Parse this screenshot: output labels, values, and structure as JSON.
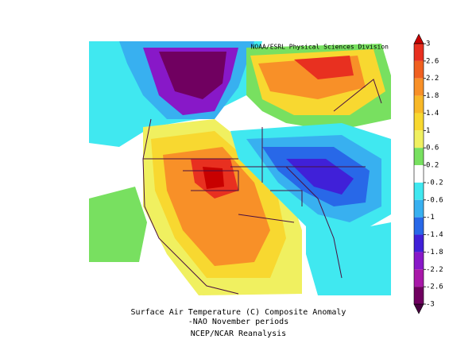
{
  "source": "NOAA/ESRL Physical Sciences Division",
  "caption": {
    "title": "Surface Air Temperature (C) Composite Anomaly",
    "subtitle": "-NAO November periods",
    "dataset": "NCEP/NCAR Reanalysis"
  },
  "colorbar": {
    "ticks": [
      3,
      2.6,
      2.2,
      1.8,
      1.4,
      1,
      0.6,
      0.2,
      -0.2,
      -0.6,
      -1,
      -1.4,
      -1.8,
      -2.2,
      -2.6,
      -3
    ],
    "colors": [
      "#c80000",
      "#e83020",
      "#f06020",
      "#f89028",
      "#f8b828",
      "#f8d830",
      "#f0f060",
      "#78e060",
      "#ffffff",
      "#40e8f0",
      "#38b0f0",
      "#2868e8",
      "#4020d8",
      "#8818c8",
      "#a818a8",
      "#700060",
      "#480040"
    ]
  }
}
